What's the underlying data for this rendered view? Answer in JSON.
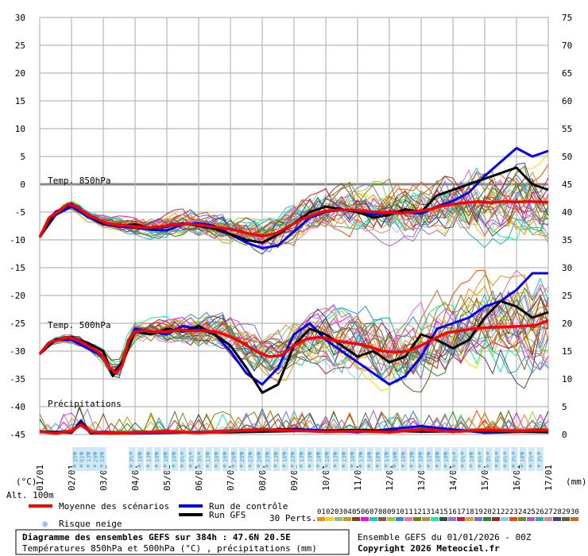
{
  "chart_data": {
    "type": "line",
    "title": "Diagramme des ensembles GEFS sur 384h : 47.6N 20.5E",
    "subtitle": "Températures 850hPa et 500hPa (°C) , précipitations (mm)",
    "run_info": "Ensemble GEFS du 01/01/2026 - 00Z",
    "copyright": "Copyright 2026 Meteociel.fr",
    "left_axis": {
      "unit": "(°C)",
      "range": [
        -45,
        30
      ],
      "ticks": [
        "30",
        "25",
        "20",
        "15",
        "10",
        "5",
        "0",
        "-5",
        "-10",
        "-15",
        "-20",
        "-25",
        "-30",
        "-35",
        "-40",
        "-45"
      ]
    },
    "right_axis": {
      "unit": "(mm)",
      "range": [
        0,
        75
      ],
      "ticks": [
        "75",
        "70",
        "65",
        "60",
        "55",
        "50",
        "45",
        "40",
        "35",
        "30",
        "25",
        "20",
        "15",
        "10",
        "5",
        "0"
      ]
    },
    "x_ticks": [
      "01/01",
      "02/01",
      "03/01",
      "04/01",
      "05/01",
      "06/01",
      "07/01",
      "08/01",
      "09/01",
      "10/01",
      "11/01",
      "12/01",
      "13/01",
      "14/01",
      "15/01",
      "16/01",
      "17/01"
    ],
    "section_labels": {
      "t850": "Temp. 850hPa",
      "t500": "Temp. 500hPa",
      "precip": "Précipitations"
    },
    "alt_label": "Alt. 100m",
    "legend": {
      "mean": {
        "label": "Moyenne des scénarios",
        "color": "#ff0000"
      },
      "control": {
        "label": "Run de contrôle",
        "color": "#0000ff"
      },
      "gfs": {
        "label": "Run GFS",
        "color": "#000000"
      },
      "snow": {
        "label": "Risque neige",
        "color": "#4a9fc8"
      },
      "perts_label": "30 Perts.",
      "perts": [
        "01",
        "02",
        "03",
        "04",
        "05",
        "06",
        "07",
        "08",
        "09",
        "10",
        "11",
        "12",
        "13",
        "14",
        "15",
        "16",
        "17",
        "18",
        "19",
        "20",
        "21",
        "22",
        "23",
        "24",
        "25",
        "26",
        "27",
        "28",
        "29",
        "30"
      ],
      "pert_colors": [
        "#ff8c00",
        "#ffd700",
        "#8fbc8f",
        "#c8a000",
        "#8b4513",
        "#ff00ff",
        "#00ced1",
        "#a0522d",
        "#9acd32",
        "#1e90ff",
        "#ff69b4",
        "#808000",
        "#cd853f",
        "#00fa9a",
        "#2f4f4f",
        "#9370db",
        "#dc143c",
        "#daa520",
        "#7b68ee",
        "#228b22",
        "#b22222",
        "#87ceeb",
        "#ff4500",
        "#6b8e23",
        "#ba55d3",
        "#20b2aa",
        "#f08080",
        "#483d8b",
        "#556b2f",
        "#d2691e"
      ]
    },
    "snow_risk_pct": [
      "35%",
      "81%",
      "13%",
      "29%",
      "23%",
      "3%",
      "16%",
      "13%",
      "19%",
      "10%",
      "16%",
      "6%",
      "3%",
      "3%",
      "13%",
      "16%",
      "16%",
      "26%",
      "29%",
      "23%",
      "26%",
      "23%",
      "13%",
      "16%",
      "23%",
      "13%",
      "19%",
      "10%",
      "16%",
      "13%",
      "13%",
      "16%",
      "13%",
      "10%",
      "10%",
      "13%",
      "10%",
      "16%",
      "13%",
      "10%",
      "13%",
      "10%",
      "10%",
      "3%",
      "6%",
      "10%",
      "6%",
      "3%",
      "6%",
      "6%",
      "3%",
      "10%",
      "3%",
      "3%"
    ],
    "series": [
      {
        "name": "Moyenne des scénarios",
        "t850": [
          [
            0,
            -9.5
          ],
          [
            0.3,
            -6
          ],
          [
            0.6,
            -4.8
          ],
          [
            0.9,
            -3.5
          ],
          [
            1.2,
            -4.2
          ],
          [
            1.5,
            -5.5
          ],
          [
            1.8,
            -6.2
          ],
          [
            2.1,
            -7
          ],
          [
            2.4,
            -7.3
          ],
          [
            2.7,
            -7.4
          ],
          [
            3,
            -7.6
          ],
          [
            3.4,
            -7.8
          ],
          [
            3.8,
            -7.6
          ],
          [
            4.2,
            -7.3
          ],
          [
            4.6,
            -7.1
          ],
          [
            5,
            -7.3
          ],
          [
            5.4,
            -7.6
          ],
          [
            5.8,
            -7.9
          ],
          [
            6.2,
            -8.3
          ],
          [
            6.6,
            -8.9
          ],
          [
            7,
            -9.3
          ],
          [
            7.4,
            -8.9
          ],
          [
            7.8,
            -7.7
          ],
          [
            8.2,
            -6.4
          ],
          [
            8.6,
            -5.5
          ],
          [
            9,
            -4.8
          ],
          [
            9.4,
            -4.6
          ],
          [
            9.8,
            -4.6
          ],
          [
            10.2,
            -4.8
          ],
          [
            10.6,
            -5
          ],
          [
            11,
            -5.1
          ],
          [
            11.4,
            -5.2
          ],
          [
            11.8,
            -4.9
          ],
          [
            12.2,
            -4.6
          ],
          [
            12.6,
            -4
          ],
          [
            13,
            -3.6
          ],
          [
            13.4,
            -3.3
          ],
          [
            13.8,
            -3.1
          ],
          [
            14.2,
            -3.3
          ],
          [
            14.6,
            -3.1
          ],
          [
            15,
            -3.2
          ],
          [
            15.4,
            -3.1
          ],
          [
            15.8,
            -3.2
          ],
          [
            16,
            -3.2
          ]
        ],
        "t500": [
          [
            0,
            -30.5
          ],
          [
            0.3,
            -28.5
          ],
          [
            0.6,
            -28
          ],
          [
            0.9,
            -27.5
          ],
          [
            1.2,
            -28
          ],
          [
            1.5,
            -29
          ],
          [
            1.8,
            -30
          ],
          [
            2,
            -31
          ],
          [
            2.2,
            -33
          ],
          [
            2.4,
            -34
          ],
          [
            2.6,
            -32.5
          ],
          [
            2.8,
            -28
          ],
          [
            3,
            -26.5
          ],
          [
            3.3,
            -26.3
          ],
          [
            3.6,
            -26.5
          ],
          [
            4,
            -26.5
          ],
          [
            4.4,
            -26.2
          ],
          [
            4.8,
            -26.4
          ],
          [
            5.2,
            -26.3
          ],
          [
            5.6,
            -26.6
          ],
          [
            6,
            -27.4
          ],
          [
            6.4,
            -28.6
          ],
          [
            6.8,
            -30
          ],
          [
            7.2,
            -31
          ],
          [
            7.6,
            -30.8
          ],
          [
            8,
            -29
          ],
          [
            8.4,
            -27.8
          ],
          [
            8.8,
            -27.5
          ],
          [
            9.2,
            -28
          ],
          [
            9.6,
            -28.4
          ],
          [
            10,
            -28.7
          ],
          [
            10.4,
            -29.3
          ],
          [
            10.8,
            -30
          ],
          [
            11.2,
            -30.2
          ],
          [
            11.6,
            -30
          ],
          [
            12,
            -29
          ],
          [
            12.4,
            -27.8
          ],
          [
            12.8,
            -26.7
          ],
          [
            13.2,
            -26.4
          ],
          [
            13.6,
            -26
          ],
          [
            14,
            -25.8
          ],
          [
            14.4,
            -25.7
          ],
          [
            14.8,
            -25.6
          ],
          [
            15.2,
            -25.5
          ],
          [
            15.6,
            -25.4
          ],
          [
            16,
            -24.5
          ]
        ],
        "precip": [
          [
            0,
            0.5
          ],
          [
            0.5,
            0.2
          ],
          [
            1,
            0.6
          ],
          [
            1.3,
            1.8
          ],
          [
            1.6,
            0.4
          ],
          [
            2.2,
            0.2
          ],
          [
            3,
            0.3
          ],
          [
            4,
            0.5
          ],
          [
            5,
            0.3
          ],
          [
            6,
            0.6
          ],
          [
            7,
            0.9
          ],
          [
            8,
            0.7
          ],
          [
            9,
            0.5
          ],
          [
            10,
            0.6
          ],
          [
            11,
            0.4
          ],
          [
            12,
            0.9
          ],
          [
            13,
            0.5
          ],
          [
            14,
            0.8
          ],
          [
            15,
            0.6
          ],
          [
            16,
            0.8
          ]
        ]
      },
      {
        "name": "Run de contrôle",
        "t850": [
          [
            0,
            -9.5
          ],
          [
            0.5,
            -5.5
          ],
          [
            1,
            -4
          ],
          [
            1.5,
            -5.8
          ],
          [
            2,
            -7.2
          ],
          [
            2.5,
            -7.6
          ],
          [
            3,
            -7.8
          ],
          [
            3.5,
            -8.2
          ],
          [
            4,
            -8.3
          ],
          [
            4.5,
            -7.2
          ],
          [
            5,
            -7
          ],
          [
            5.5,
            -7.5
          ],
          [
            6,
            -9
          ],
          [
            6.5,
            -10.5
          ],
          [
            7,
            -11.5
          ],
          [
            7.5,
            -11
          ],
          [
            8,
            -8.5
          ],
          [
            8.5,
            -6
          ],
          [
            9,
            -5
          ],
          [
            9.5,
            -4.5
          ],
          [
            10,
            -5
          ],
          [
            10.5,
            -5.5
          ],
          [
            11,
            -5
          ],
          [
            11.5,
            -5
          ],
          [
            12,
            -5.3
          ],
          [
            12.5,
            -4
          ],
          [
            13,
            -3
          ],
          [
            13.5,
            -1.5
          ],
          [
            14,
            1.5
          ],
          [
            14.5,
            4
          ],
          [
            15,
            6.5
          ],
          [
            15.5,
            5
          ],
          [
            16,
            6
          ]
        ],
        "t500": [
          [
            0,
            -30.5
          ],
          [
            0.5,
            -28
          ],
          [
            1,
            -28
          ],
          [
            1.5,
            -29.5
          ],
          [
            2,
            -31
          ],
          [
            2.3,
            -34
          ],
          [
            2.6,
            -32
          ],
          [
            3,
            -26
          ],
          [
            3.5,
            -26.5
          ],
          [
            4,
            -27
          ],
          [
            4.5,
            -25.5
          ],
          [
            5,
            -26
          ],
          [
            5.5,
            -27
          ],
          [
            6,
            -30
          ],
          [
            6.5,
            -34
          ],
          [
            7,
            -36
          ],
          [
            7.5,
            -33
          ],
          [
            8,
            -27
          ],
          [
            8.5,
            -25
          ],
          [
            9,
            -28
          ],
          [
            9.5,
            -30
          ],
          [
            10,
            -32
          ],
          [
            10.5,
            -34
          ],
          [
            11,
            -36
          ],
          [
            11.5,
            -34.5
          ],
          [
            12,
            -31
          ],
          [
            12.5,
            -26
          ],
          [
            13,
            -25
          ],
          [
            13.5,
            -24
          ],
          [
            14,
            -22
          ],
          [
            14.5,
            -21
          ],
          [
            15,
            -19
          ],
          [
            15.5,
            -16
          ],
          [
            16,
            -16
          ]
        ],
        "precip": [
          [
            0,
            0.5
          ],
          [
            1,
            0.4
          ],
          [
            1.3,
            2.5
          ],
          [
            1.6,
            0.3
          ],
          [
            3,
            0.2
          ],
          [
            6,
            0.5
          ],
          [
            8,
            1
          ],
          [
            10,
            0.4
          ],
          [
            12,
            1.5
          ],
          [
            14,
            0.3
          ],
          [
            16,
            0.6
          ]
        ]
      },
      {
        "name": "Run GFS",
        "t850": [
          [
            0,
            -9.5
          ],
          [
            0.5,
            -5
          ],
          [
            1,
            -3.5
          ],
          [
            1.5,
            -5.5
          ],
          [
            2,
            -7
          ],
          [
            2.5,
            -7.5
          ],
          [
            3,
            -7.2
          ],
          [
            3.5,
            -8
          ],
          [
            4,
            -7.6
          ],
          [
            4.5,
            -7
          ],
          [
            5,
            -7.5
          ],
          [
            5.5,
            -8
          ],
          [
            6,
            -9
          ],
          [
            6.5,
            -10
          ],
          [
            7,
            -10.5
          ],
          [
            7.5,
            -9
          ],
          [
            8,
            -7
          ],
          [
            8.5,
            -5
          ],
          [
            9,
            -4
          ],
          [
            9.5,
            -4.5
          ],
          [
            10,
            -5
          ],
          [
            10.5,
            -6
          ],
          [
            11,
            -5.5
          ],
          [
            11.5,
            -4.5
          ],
          [
            12,
            -5
          ],
          [
            12.5,
            -2
          ],
          [
            13,
            -1
          ],
          [
            13.5,
            0
          ],
          [
            14,
            1
          ],
          [
            14.5,
            2
          ],
          [
            15,
            3
          ],
          [
            15.5,
            0
          ],
          [
            16,
            -1
          ]
        ],
        "t500": [
          [
            0,
            -30.5
          ],
          [
            0.5,
            -28
          ],
          [
            1,
            -27.5
          ],
          [
            1.5,
            -28.5
          ],
          [
            2,
            -30
          ],
          [
            2.3,
            -34.5
          ],
          [
            2.6,
            -32
          ],
          [
            3,
            -26.5
          ],
          [
            3.5,
            -27
          ],
          [
            4,
            -26
          ],
          [
            4.5,
            -26.5
          ],
          [
            5,
            -25.5
          ],
          [
            5.5,
            -27
          ],
          [
            6,
            -29
          ],
          [
            6.5,
            -33
          ],
          [
            7,
            -37.5
          ],
          [
            7.5,
            -36
          ],
          [
            8,
            -29
          ],
          [
            8.5,
            -26
          ],
          [
            9,
            -27
          ],
          [
            9.5,
            -29
          ],
          [
            10,
            -31
          ],
          [
            10.5,
            -30
          ],
          [
            11,
            -32
          ],
          [
            11.5,
            -31
          ],
          [
            12,
            -27
          ],
          [
            12.5,
            -28
          ],
          [
            13,
            -29.5
          ],
          [
            13.5,
            -28
          ],
          [
            14,
            -24
          ],
          [
            14.5,
            -21
          ],
          [
            15,
            -22
          ],
          [
            15.5,
            -24
          ],
          [
            16,
            -23
          ]
        ],
        "precip": [
          [
            0,
            0.5
          ],
          [
            1,
            0.3
          ],
          [
            1.3,
            2.2
          ],
          [
            1.6,
            0.2
          ],
          [
            3,
            0.3
          ],
          [
            6,
            0.4
          ],
          [
            8,
            0.6
          ],
          [
            10,
            0.8
          ],
          [
            12,
            0.5
          ],
          [
            14,
            0.6
          ],
          [
            16,
            0.4
          ]
        ]
      }
    ]
  }
}
